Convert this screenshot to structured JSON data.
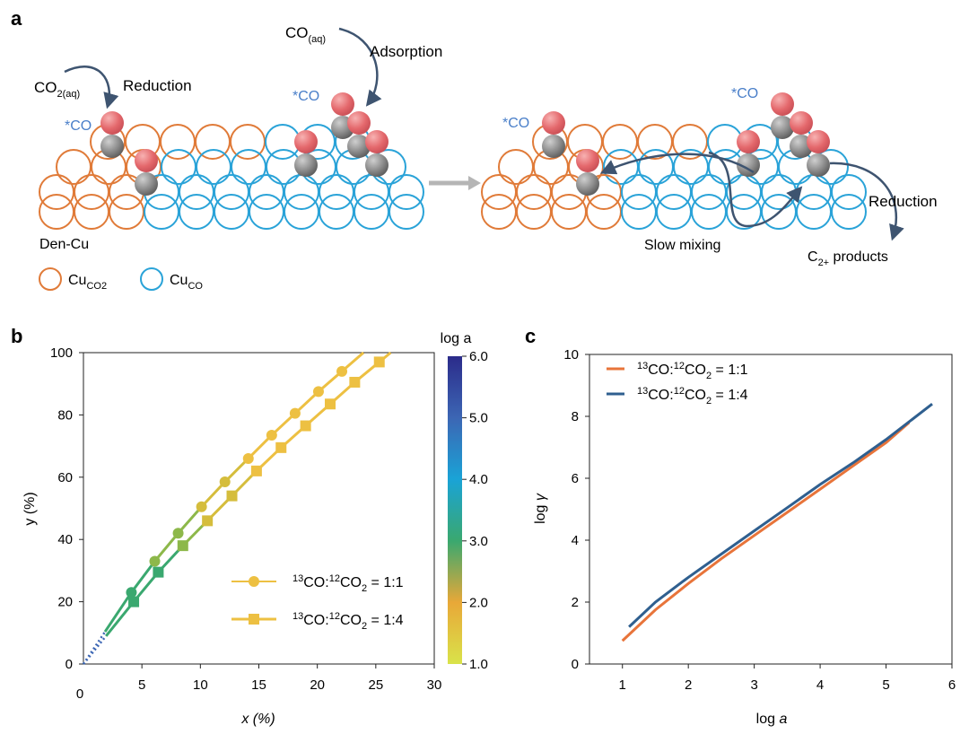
{
  "panel_labels": {
    "a": "a",
    "b": "b",
    "c": "c"
  },
  "panel_a": {
    "co2_aq": "CO",
    "co2_aq_sub": "2(aq)",
    "reduction_left": "Reduction",
    "co_aq": "CO",
    "co_aq_sub": "(aq)",
    "adsorption": "Adsorption",
    "star_co": "*CO",
    "den_cu": "Den-Cu",
    "slow_mixing": "Slow mixing",
    "reduction_right": "Reduction",
    "c2_products": "C",
    "c2_sub": "2+",
    "c2_tail": " products",
    "legend_cu_co2": "Cu",
    "legend_cu_co2_sub": "CO2",
    "legend_cu_co": "Cu",
    "legend_cu_co_sub": "CO",
    "colors": {
      "cu_co2": "#e07b39",
      "cu_co": "#2aa3d8",
      "co_text": "#4a7fc9",
      "oxygen": "#e4686c",
      "carbon": "#777777",
      "arrow": "#3e5470"
    }
  },
  "chart_data": [
    {
      "panel": "b",
      "type": "line",
      "xlabel": "x (%)",
      "ylabel": "y (%)",
      "xlim": [
        0,
        30
      ],
      "ylim": [
        0,
        100
      ],
      "xticks": [
        5,
        10,
        15,
        20,
        25,
        30
      ],
      "yticks": [
        0,
        20,
        40,
        60,
        80,
        100
      ],
      "colorbar": {
        "title": "log a",
        "range": [
          1.0,
          6.0
        ],
        "ticks": [
          "6.0",
          "5.0",
          "4.0",
          "3.0",
          "2.0",
          "1.0"
        ]
      },
      "legend": {
        "placement": "lower-right"
      },
      "series": [
        {
          "name": "13CO:12CO2 = 1:1",
          "marker": "circle",
          "x": [
            4.1,
            6.1,
            8.1,
            10.1,
            12.1,
            14.1,
            16.1,
            18.1,
            20.1,
            22.1
          ],
          "y": [
            23,
            33,
            42,
            50.5,
            58.5,
            66,
            73.5,
            80.5,
            87.5,
            94
          ]
        },
        {
          "name": "13CO:12CO2 = 1:4",
          "marker": "square",
          "x": [
            4.3,
            6.4,
            8.5,
            10.6,
            12.7,
            14.8,
            16.9,
            19.0,
            21.1,
            23.2,
            25.3
          ],
          "y": [
            20,
            29.5,
            38,
            46,
            54,
            62,
            69.5,
            76.5,
            83.5,
            90.5,
            97
          ]
        }
      ]
    },
    {
      "panel": "c",
      "type": "line",
      "xlabel": "log a",
      "ylabel": "log γ",
      "xlim": [
        0.5,
        6
      ],
      "ylim": [
        0,
        10
      ],
      "xticks": [
        1,
        2,
        3,
        4,
        5,
        6
      ],
      "yticks": [
        0,
        2,
        4,
        6,
        8,
        10
      ],
      "legend": {
        "placement": "top-left"
      },
      "series": [
        {
          "name": "13CO:12CO2 = 1:1",
          "color": "#e8743a",
          "x": [
            1.0,
            1.5,
            2.0,
            2.5,
            3.0,
            3.5,
            4.0,
            4.5,
            5.0,
            5.35
          ],
          "y": [
            0.75,
            1.75,
            2.6,
            3.4,
            4.15,
            4.9,
            5.65,
            6.4,
            7.15,
            7.8
          ]
        },
        {
          "name": "13CO:12CO2 = 1:4",
          "color": "#2f5f8f",
          "x": [
            1.1,
            1.5,
            2.0,
            2.5,
            3.0,
            3.5,
            4.0,
            4.5,
            5.0,
            5.7
          ],
          "y": [
            1.2,
            2.0,
            2.8,
            3.55,
            4.3,
            5.05,
            5.8,
            6.5,
            7.25,
            8.4
          ]
        }
      ]
    }
  ]
}
